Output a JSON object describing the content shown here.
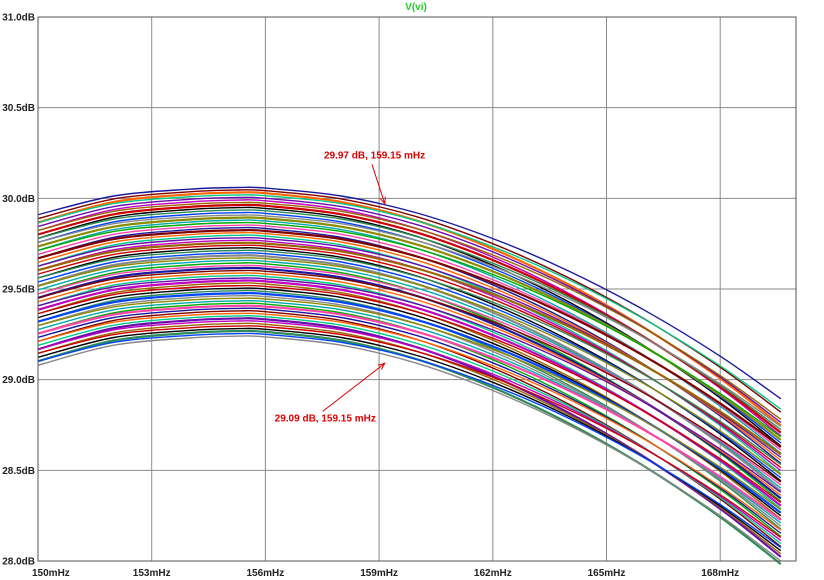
{
  "chart_data": {
    "type": "line",
    "title": "V(vi)",
    "title_color": "#22cc22",
    "xlabel": "",
    "ylabel": "",
    "xlim": [
      150,
      170
    ],
    "ylim": [
      28.0,
      31.0
    ],
    "grid": true,
    "x_ticks": [
      {
        "value": 150,
        "label": "150mHz"
      },
      {
        "value": 153,
        "label": "153mHz"
      },
      {
        "value": 156,
        "label": "156mHz"
      },
      {
        "value": 159,
        "label": "159mHz"
      },
      {
        "value": 162,
        "label": "162mHz"
      },
      {
        "value": 165,
        "label": "165mHz"
      },
      {
        "value": 168,
        "label": "168mHz"
      }
    ],
    "y_ticks": [
      {
        "value": 31.0,
        "label": "31.0dB"
      },
      {
        "value": 30.5,
        "label": "30.5dB"
      },
      {
        "value": 30.0,
        "label": "30.0dB"
      },
      {
        "value": 29.5,
        "label": "29.5dB"
      },
      {
        "value": 29.0,
        "label": "29.0dB"
      },
      {
        "value": 28.5,
        "label": "28.5dB"
      },
      {
        "value": 28.0,
        "label": "28.0dB"
      }
    ],
    "series_shape": {
      "x": [
        150,
        152,
        154,
        155.3,
        156,
        158,
        160,
        162,
        164,
        166,
        168,
        169.6
      ],
      "offset_from_peak": [
        -0.16,
        -0.05,
        -0.01,
        0.0,
        -0.004,
        -0.05,
        -0.15,
        -0.3,
        -0.49,
        -0.72,
        -0.99,
        -1.24
      ],
      "peak_top": 30.06,
      "peak_bottom": 29.24,
      "count": 60
    },
    "colors": [
      "#1a1a9e",
      "#cc0000",
      "#00aa00",
      "#c000c0",
      "#8b8b00",
      "#00cc88",
      "#0044ff",
      "#800000",
      "#000000",
      "#ff44aa",
      "#996600",
      "#00aaaa",
      "#6a0dad",
      "#888888",
      "#ff6600",
      "#2e8b57"
    ],
    "annotations": [
      {
        "text": "29.97 dB, 159.15 mHz",
        "x": 159.15,
        "y": 29.97,
        "color": "#dd0000",
        "label_x": 158.6,
        "label_y": 30.22
      },
      {
        "text": "29.09 dB, 159.15 mHz",
        "x": 159.15,
        "y": 29.09,
        "color": "#dd0000",
        "label_x": 157.3,
        "label_y": 28.77
      }
    ]
  }
}
